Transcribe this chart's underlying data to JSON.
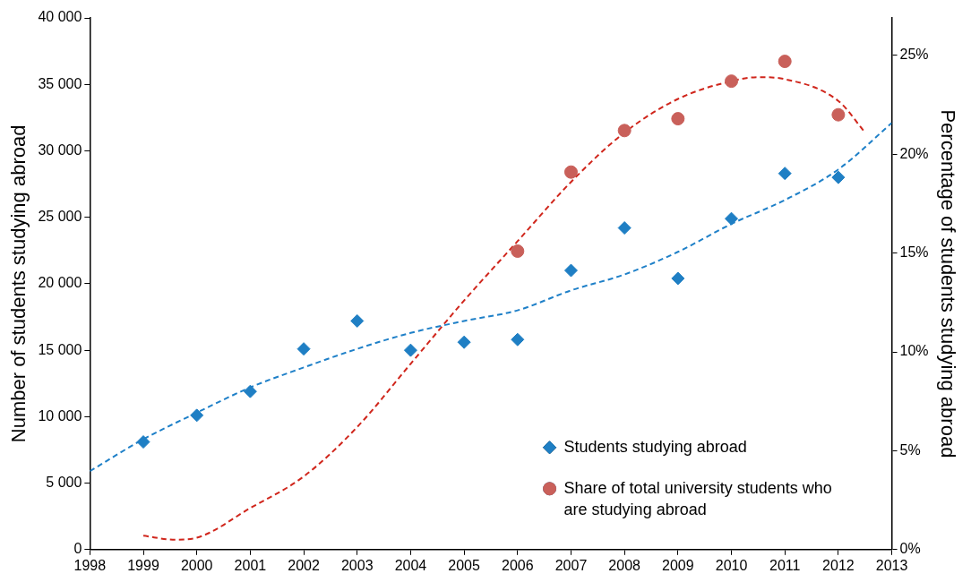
{
  "chart_data": {
    "type": "scatter",
    "ylabel": "Number of students studying abroad",
    "y2label": "Percentage of students studying abroad",
    "xlim": [
      1998,
      2013
    ],
    "xticks": [
      1998,
      1999,
      2000,
      2001,
      2002,
      2003,
      2004,
      2005,
      2006,
      2007,
      2008,
      2009,
      2010,
      2011,
      2012,
      2013
    ],
    "ylim": [
      0,
      40000
    ],
    "yticks": [
      {
        "value": 0,
        "label": "0"
      },
      {
        "value": 5000,
        "label": "5 000"
      },
      {
        "value": 10000,
        "label": "10 000"
      },
      {
        "value": 15000,
        "label": "15 000"
      },
      {
        "value": 20000,
        "label": "20 000"
      },
      {
        "value": 25000,
        "label": "25 000"
      },
      {
        "value": 30000,
        "label": "30 000"
      },
      {
        "value": 35000,
        "label": "35 000"
      },
      {
        "value": 40000,
        "label": "40 000"
      }
    ],
    "y2lim": [
      0,
      26.9
    ],
    "y2ticks": [
      {
        "value": 0,
        "label": "0%"
      },
      {
        "value": 5,
        "label": "5%"
      },
      {
        "value": 10,
        "label": "10%"
      },
      {
        "value": 15,
        "label": "15%"
      },
      {
        "value": 20,
        "label": "20%"
      },
      {
        "value": 25,
        "label": "25%"
      }
    ],
    "legend": "bottom right",
    "series": [
      {
        "name": "Students studying abroad",
        "type": "scatter",
        "marker": "diamond",
        "color": "#1f7fc4",
        "x": [
          1999,
          2000,
          2001,
          2002,
          2003,
          2004,
          2005,
          2006,
          2007,
          2008,
          2009,
          2010,
          2011,
          2012
        ],
        "values": [
          8100,
          10100,
          11900,
          15100,
          17200,
          15000,
          15600,
          15800,
          21000,
          24200,
          20400,
          24900,
          28300,
          28000
        ]
      },
      {
        "name": "Share of total university students who are studying abroad",
        "type": "scatter",
        "marker": "circle",
        "color": "#c9605a",
        "axis": "y2",
        "x": [
          2006,
          2007,
          2008,
          2009,
          2010,
          2011,
          2012
        ],
        "values": [
          15.1,
          19.1,
          21.2,
          21.8,
          23.7,
          24.7,
          22.0
        ]
      },
      {
        "type": "line",
        "marker": "none",
        "line_style": "dashed",
        "color": "#1f80c8",
        "x": [
          1998,
          1999,
          2000,
          2001,
          2002,
          2003,
          2004,
          2005,
          2006,
          2007,
          2008,
          2009,
          2010,
          2011,
          2012,
          2013
        ],
        "values": [
          5900,
          8300,
          10300,
          12200,
          13700,
          15100,
          16300,
          17200,
          18000,
          19500,
          20700,
          22400,
          24500,
          26300,
          28600,
          32100
        ]
      },
      {
        "type": "line",
        "marker": "none",
        "line_style": "dashed",
        "color": "#d0261c",
        "axis": "y2",
        "x": [
          1999,
          1999.6,
          2000,
          2001,
          2002,
          2003,
          2004,
          2005,
          2006,
          2007,
          2008,
          2009,
          2010,
          2010.5,
          2011,
          2012,
          2012.5
        ],
        "values": [
          0.7,
          0.5,
          0.6,
          2.1,
          3.7,
          6.2,
          9.4,
          12.6,
          15.6,
          18.6,
          21.1,
          22.8,
          23.7,
          23.9,
          23.8,
          22.7,
          21.1
        ]
      }
    ]
  }
}
